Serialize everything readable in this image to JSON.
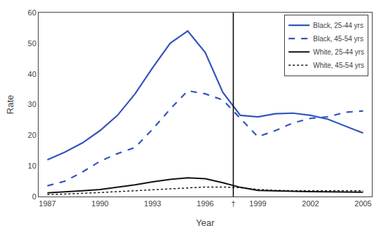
{
  "chart_data": {
    "type": "line",
    "xlabel": "Year",
    "ylabel": "Rate",
    "x": [
      1987,
      1988,
      1989,
      1990,
      1991,
      1992,
      1993,
      1994,
      1995,
      1996,
      1997,
      1998,
      1999,
      2000,
      2001,
      2002,
      2003,
      2004,
      2005
    ],
    "series": [
      {
        "name": "Black, 25-44 yrs",
        "color": "#3355bb",
        "line_style": "solid",
        "values": [
          12.0,
          14.5,
          17.5,
          21.5,
          26.5,
          33.5,
          42.0,
          50.0,
          54.0,
          47.0,
          34.0,
          26.5,
          26.0,
          27.0,
          27.2,
          26.5,
          25.2,
          23.0,
          20.7
        ]
      },
      {
        "name": "Black, 45-54 yrs",
        "color": "#3355bb",
        "line_style": "dashed",
        "values": [
          3.5,
          5.0,
          8.0,
          11.5,
          14.0,
          16.0,
          22.0,
          28.5,
          34.5,
          33.5,
          31.5,
          25.5,
          19.5,
          21.5,
          24.0,
          25.5,
          26.0,
          27.5,
          27.9
        ]
      },
      {
        "name": "White, 25-44 yrs",
        "color": "#111111",
        "line_style": "solid",
        "values": [
          1.2,
          1.5,
          1.9,
          2.3,
          3.0,
          3.8,
          4.8,
          5.6,
          6.1,
          5.8,
          4.5,
          3.0,
          2.0,
          1.8,
          1.7,
          1.6,
          1.5,
          1.5,
          1.4
        ]
      },
      {
        "name": "White, 45-54 yrs",
        "color": "#111111",
        "line_style": "dotted",
        "values": [
          0.6,
          0.8,
          1.0,
          1.3,
          1.6,
          1.9,
          2.2,
          2.5,
          2.9,
          3.1,
          3.1,
          2.9,
          2.3,
          2.0,
          1.9,
          1.9,
          1.9,
          1.9,
          1.9
        ]
      }
    ],
    "vline_x": 1997.6,
    "xlim": [
      1986.5,
      2005.5
    ],
    "xticks": [
      1987,
      1990,
      1993,
      1996,
      {
        "value": 1997.6,
        "label": "†"
      },
      1999,
      2002,
      2005
    ],
    "ylim": [
      0,
      60
    ],
    "yticks": [
      0,
      10,
      20,
      30,
      40,
      50,
      60
    ],
    "grid": false,
    "legend": "upper right"
  }
}
